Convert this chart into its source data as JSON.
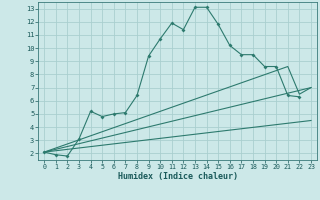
{
  "xlabel": "Humidex (Indice chaleur)",
  "bg_color": "#cce8e8",
  "grid_color": "#aacfcf",
  "line_color": "#2d7a6e",
  "xlim": [
    -0.5,
    23.5
  ],
  "ylim": [
    1.5,
    13.5
  ],
  "xticks": [
    0,
    1,
    2,
    3,
    4,
    5,
    6,
    7,
    8,
    9,
    10,
    11,
    12,
    13,
    14,
    15,
    16,
    17,
    18,
    19,
    20,
    21,
    22,
    23
  ],
  "yticks": [
    2,
    3,
    4,
    5,
    6,
    7,
    8,
    9,
    10,
    11,
    12,
    13
  ],
  "line1_x": [
    0,
    1,
    2,
    3,
    4,
    5,
    6,
    7,
    8,
    9,
    10,
    11,
    12,
    13,
    14,
    15,
    16,
    17,
    18,
    19,
    20,
    21,
    22
  ],
  "line1_y": [
    2.1,
    1.9,
    1.8,
    3.1,
    5.2,
    4.8,
    5.0,
    5.1,
    6.4,
    9.4,
    10.7,
    11.9,
    11.4,
    13.1,
    13.1,
    11.8,
    10.2,
    9.5,
    9.5,
    8.6,
    8.6,
    6.4,
    6.3
  ],
  "line2_x": [
    0,
    21,
    22,
    23
  ],
  "line2_y": [
    2.1,
    8.6,
    6.5,
    7.0
  ],
  "line3_x": [
    0,
    23
  ],
  "line3_y": [
    2.1,
    7.0
  ],
  "line4_x": [
    0,
    23
  ],
  "line4_y": [
    2.1,
    4.5
  ]
}
